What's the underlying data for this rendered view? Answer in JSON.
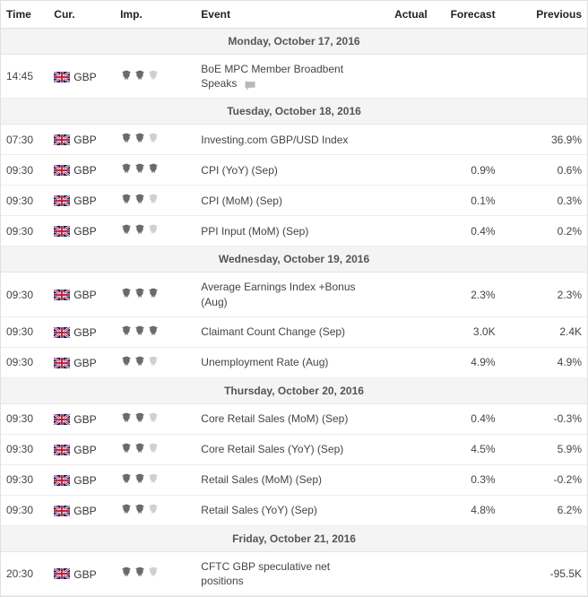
{
  "columns": {
    "time": "Time",
    "cur": "Cur.",
    "imp": "Imp.",
    "event": "Event",
    "actual": "Actual",
    "forecast": "Forecast",
    "previous": "Previous"
  },
  "flag_colors": {
    "gb_blue": "#012169",
    "gb_red": "#C8102E",
    "gb_white": "#FFFFFF"
  },
  "bull_colors": {
    "dark": "#6b6b6b",
    "light": "#d0d0d0"
  },
  "days": [
    {
      "label": "Monday, October 17, 2016",
      "rows": [
        {
          "time": "14:45",
          "cur": "GBP",
          "flag": "gb",
          "imp": 2,
          "event": "BoE MPC Member Broadbent Speaks",
          "icon": "speech",
          "actual": "",
          "forecast": "",
          "previous": ""
        }
      ]
    },
    {
      "label": "Tuesday, October 18, 2016",
      "rows": [
        {
          "time": "07:30",
          "cur": "GBP",
          "flag": "gb",
          "imp": 2,
          "event": "Investing.com GBP/USD Index",
          "actual": "",
          "forecast": "",
          "previous": "36.9%"
        },
        {
          "time": "09:30",
          "cur": "GBP",
          "flag": "gb",
          "imp": 3,
          "event": "CPI (YoY) (Sep)",
          "actual": "",
          "forecast": "0.9%",
          "previous": "0.6%"
        },
        {
          "time": "09:30",
          "cur": "GBP",
          "flag": "gb",
          "imp": 2,
          "event": "CPI (MoM) (Sep)",
          "actual": "",
          "forecast": "0.1%",
          "previous": "0.3%"
        },
        {
          "time": "09:30",
          "cur": "GBP",
          "flag": "gb",
          "imp": 2,
          "event": "PPI Input (MoM) (Sep)",
          "actual": "",
          "forecast": "0.4%",
          "previous": "0.2%"
        }
      ]
    },
    {
      "label": "Wednesday, October 19, 2016",
      "rows": [
        {
          "time": "09:30",
          "cur": "GBP",
          "flag": "gb",
          "imp": 3,
          "event": "Average Earnings Index +Bonus (Aug)",
          "actual": "",
          "forecast": "2.3%",
          "previous": "2.3%"
        },
        {
          "time": "09:30",
          "cur": "GBP",
          "flag": "gb",
          "imp": 3,
          "event": "Claimant Count Change (Sep)",
          "actual": "",
          "forecast": "3.0K",
          "previous": "2.4K"
        },
        {
          "time": "09:30",
          "cur": "GBP",
          "flag": "gb",
          "imp": 2,
          "event": "Unemployment Rate (Aug)",
          "actual": "",
          "forecast": "4.9%",
          "previous": "4.9%"
        }
      ]
    },
    {
      "label": "Thursday, October 20, 2016",
      "rows": [
        {
          "time": "09:30",
          "cur": "GBP",
          "flag": "gb",
          "imp": 2,
          "event": "Core Retail Sales (MoM) (Sep)",
          "actual": "",
          "forecast": "0.4%",
          "previous": "-0.3%"
        },
        {
          "time": "09:30",
          "cur": "GBP",
          "flag": "gb",
          "imp": 2,
          "event": "Core Retail Sales (YoY) (Sep)",
          "actual": "",
          "forecast": "4.5%",
          "previous": "5.9%"
        },
        {
          "time": "09:30",
          "cur": "GBP",
          "flag": "gb",
          "imp": 2,
          "event": "Retail Sales (MoM) (Sep)",
          "actual": "",
          "forecast": "0.3%",
          "previous": "-0.2%"
        },
        {
          "time": "09:30",
          "cur": "GBP",
          "flag": "gb",
          "imp": 2,
          "event": "Retail Sales (YoY) (Sep)",
          "actual": "",
          "forecast": "4.8%",
          "previous": "6.2%"
        }
      ]
    },
    {
      "label": "Friday, October 21, 2016",
      "rows": [
        {
          "time": "20:30",
          "cur": "GBP",
          "flag": "gb",
          "imp": 2,
          "event": "CFTC GBP speculative net positions",
          "actual": "",
          "forecast": "",
          "previous": "-95.5K"
        }
      ]
    }
  ]
}
